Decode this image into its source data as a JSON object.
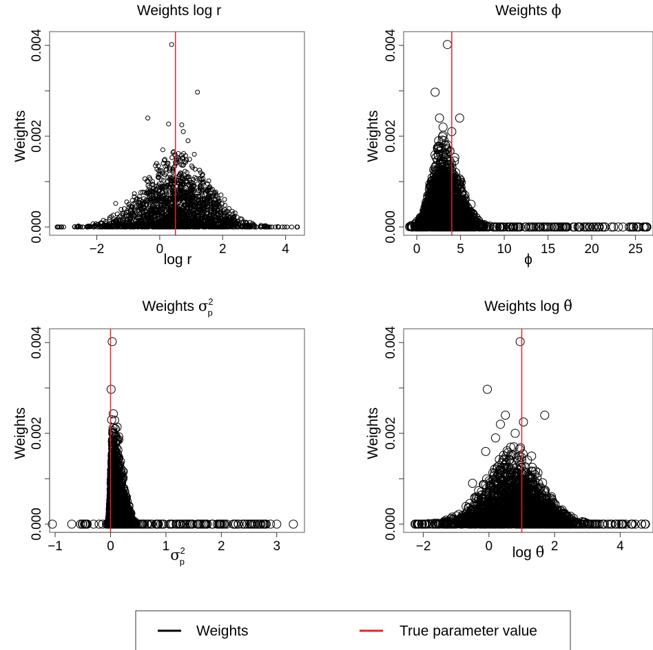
{
  "chart_data": [
    {
      "type": "scatter",
      "title": "Weights log r",
      "xlabel": "log r",
      "ylabel": "Weights",
      "xlim": [
        -3.5,
        4.6
      ],
      "ylim": [
        0,
        0.004
      ],
      "x_ticks": [
        "−2",
        "0",
        "2",
        "4"
      ],
      "x_tick_values": [
        -2,
        0,
        2,
        4
      ],
      "y_ticks": [
        "0.000",
        "0.002",
        "0.004"
      ],
      "y_tick_values": [
        0,
        0.002,
        0.004
      ],
      "true_value": 0.5,
      "marker_size": "small",
      "series": [
        {
          "points": [
            [
              0.38,
              0.00402
            ],
            [
              1.2,
              0.00297
            ],
            [
              -0.38,
              0.0024
            ],
            [
              0.28,
              0.00227
            ],
            [
              0.7,
              0.00225
            ],
            [
              0.75,
              0.0021
            ],
            [
              0.9,
              0.0019
            ],
            [
              -1.4,
              0.00052
            ],
            [
              0.1,
              0.0017
            ],
            [
              1.1,
              0.0016
            ],
            [
              0.6,
              0.0015
            ],
            [
              -0.1,
              0.0014
            ],
            [
              1.3,
              0.0012
            ],
            [
              0.3,
              0.0013
            ],
            [
              0.9,
              0.0011
            ]
          ]
        }
      ],
      "mass": {
        "center": 0.6,
        "spread_left": 1.1,
        "spread_right": 1.0,
        "peak": 0.00125,
        "min_x": -3.3,
        "max_x": 4.4
      }
    },
    {
      "type": "scatter",
      "title": "Weights  ϕ",
      "xlabel": "ϕ",
      "ylabel": "Weights",
      "xlim": [
        -1.5,
        27
      ],
      "ylim": [
        0,
        0.004
      ],
      "x_ticks": [
        "0",
        "5",
        "10",
        "15",
        "20",
        "25"
      ],
      "x_tick_values": [
        0,
        5,
        10,
        15,
        20,
        25
      ],
      "y_ticks": [
        "0.000",
        "0.002",
        "0.004"
      ],
      "y_tick_values": [
        0,
        0.002,
        0.004
      ],
      "true_value": 4.0,
      "marker_size": "large",
      "series": [
        {
          "points": [
            [
              3.5,
              0.00402
            ],
            [
              2.1,
              0.00297
            ],
            [
              2.6,
              0.0024
            ],
            [
              4.9,
              0.0024
            ],
            [
              3.0,
              0.0022
            ],
            [
              4.0,
              0.0021
            ],
            [
              2.5,
              0.0019
            ],
            [
              3.3,
              0.0018
            ],
            [
              6.2,
              0.0005
            ],
            [
              5.5,
              0.0007
            ],
            [
              16.8,
              0.0
            ],
            [
              19.5,
              0.0
            ],
            [
              20.8,
              0.0
            ],
            [
              22.5,
              0.0
            ],
            [
              24.7,
              0.0
            ],
            [
              26.3,
              0.0
            ]
          ]
        }
      ],
      "mass": {
        "center": 3.0,
        "spread_left": 1.3,
        "spread_right": 1.8,
        "peak": 0.0014,
        "min_x": -0.8,
        "max_x": 26.3
      }
    },
    {
      "type": "scatter",
      "title": "Weights  σp²",
      "xlabel": "σp²",
      "ylabel": "Weights",
      "xlim": [
        -1.1,
        3.5
      ],
      "ylim": [
        0,
        0.004
      ],
      "x_ticks": [
        "−1",
        "0",
        "1",
        "2",
        "3"
      ],
      "x_tick_values": [
        -1,
        0,
        1,
        2,
        3
      ],
      "y_ticks": [
        "0.000",
        "0.002",
        "0.004"
      ],
      "y_tick_values": [
        0,
        0.002,
        0.004
      ],
      "true_value": 0.0,
      "marker_size": "large",
      "series": [
        {
          "points": [
            [
              0.03,
              0.00402
            ],
            [
              0.01,
              0.00297
            ],
            [
              0.05,
              0.00243
            ],
            [
              0.02,
              0.0023
            ],
            [
              0.08,
              0.0021
            ],
            [
              0.04,
              0.002
            ],
            [
              0.1,
              0.0018
            ],
            [
              0.15,
              0.0013
            ],
            [
              0.2,
              0.0009
            ],
            [
              0.3,
              0.0005
            ],
            [
              -1.05,
              0.0
            ],
            [
              -0.7,
              0.0
            ],
            [
              3.0,
              0.0
            ],
            [
              3.3,
              0.0
            ]
          ]
        }
      ],
      "mass": {
        "center": 0.05,
        "spread_left": 0.03,
        "spread_right": 0.15,
        "peak": 0.0016,
        "min_x": -0.6,
        "max_x": 2.9
      }
    },
    {
      "type": "scatter",
      "title": "Weights log θ̃",
      "xlabel": "log θ̃",
      "ylabel": "Weights",
      "xlim": [
        -2.6,
        5.0
      ],
      "ylim": [
        0,
        0.004
      ],
      "x_ticks": [
        "−2",
        "0",
        "2",
        "4"
      ],
      "x_tick_values": [
        -2,
        0,
        2,
        4
      ],
      "y_ticks": [
        "0.000",
        "0.002",
        "0.004"
      ],
      "y_tick_values": [
        0,
        0.002,
        0.004
      ],
      "true_value": 1.0,
      "marker_size": "large",
      "series": [
        {
          "points": [
            [
              0.95,
              0.00402
            ],
            [
              -0.05,
              0.00297
            ],
            [
              0.5,
              0.0024
            ],
            [
              1.7,
              0.0024
            ],
            [
              1.05,
              0.00225
            ],
            [
              0.35,
              0.0022
            ],
            [
              0.8,
              0.002
            ],
            [
              -0.1,
              0.0016
            ],
            [
              0.2,
              0.0019
            ],
            [
              1.3,
              0.0015
            ],
            [
              -0.5,
              0.0009
            ]
          ]
        }
      ],
      "mass": {
        "center": 0.8,
        "spread_left": 0.9,
        "spread_right": 0.8,
        "peak": 0.0012,
        "min_x": -2.4,
        "max_x": 4.8
      }
    }
  ],
  "legend": {
    "items": [
      {
        "label": "Weights",
        "color": "#000000"
      },
      {
        "label": "True parameter value",
        "color": "#e8202a"
      }
    ]
  },
  "colors": {
    "points": "#000000",
    "true_line": "#e8202a"
  }
}
